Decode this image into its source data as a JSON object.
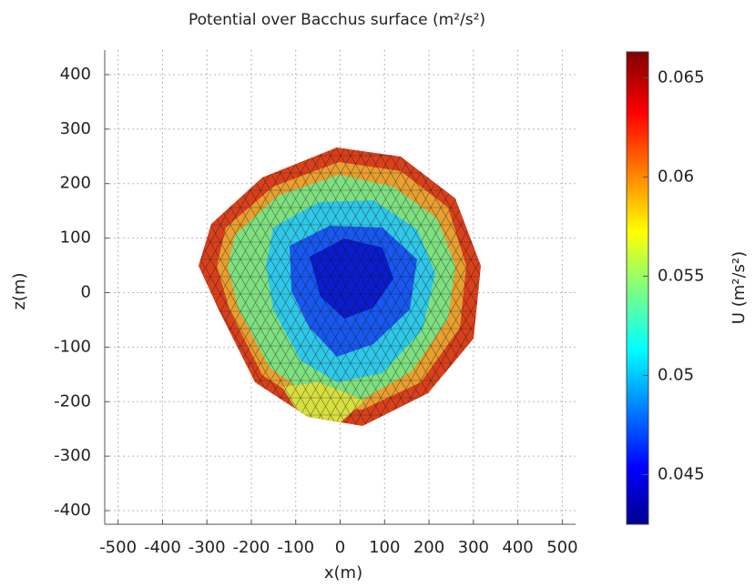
{
  "chart_data": {
    "type": "surface",
    "title": "Potential over Bacchus surface (m²/s²)",
    "x_label": "x(m)",
    "y_label": "z(m)",
    "xlim": [
      -530,
      530
    ],
    "xticks": [
      -500,
      -400,
      -300,
      -200,
      -100,
      0,
      100,
      200,
      300,
      400,
      500
    ],
    "ylim": [
      -425,
      445
    ],
    "yticks": [
      -400,
      -300,
      -200,
      -100,
      0,
      100,
      200,
      300,
      400
    ],
    "grid": true,
    "colorbar": {
      "label": "U (m²/s²)",
      "lim": [
        0.0425,
        0.0663
      ],
      "ticks": [
        0.045,
        0.05,
        0.055,
        0.06,
        0.065
      ],
      "colormap": "jet"
    }
  }
}
